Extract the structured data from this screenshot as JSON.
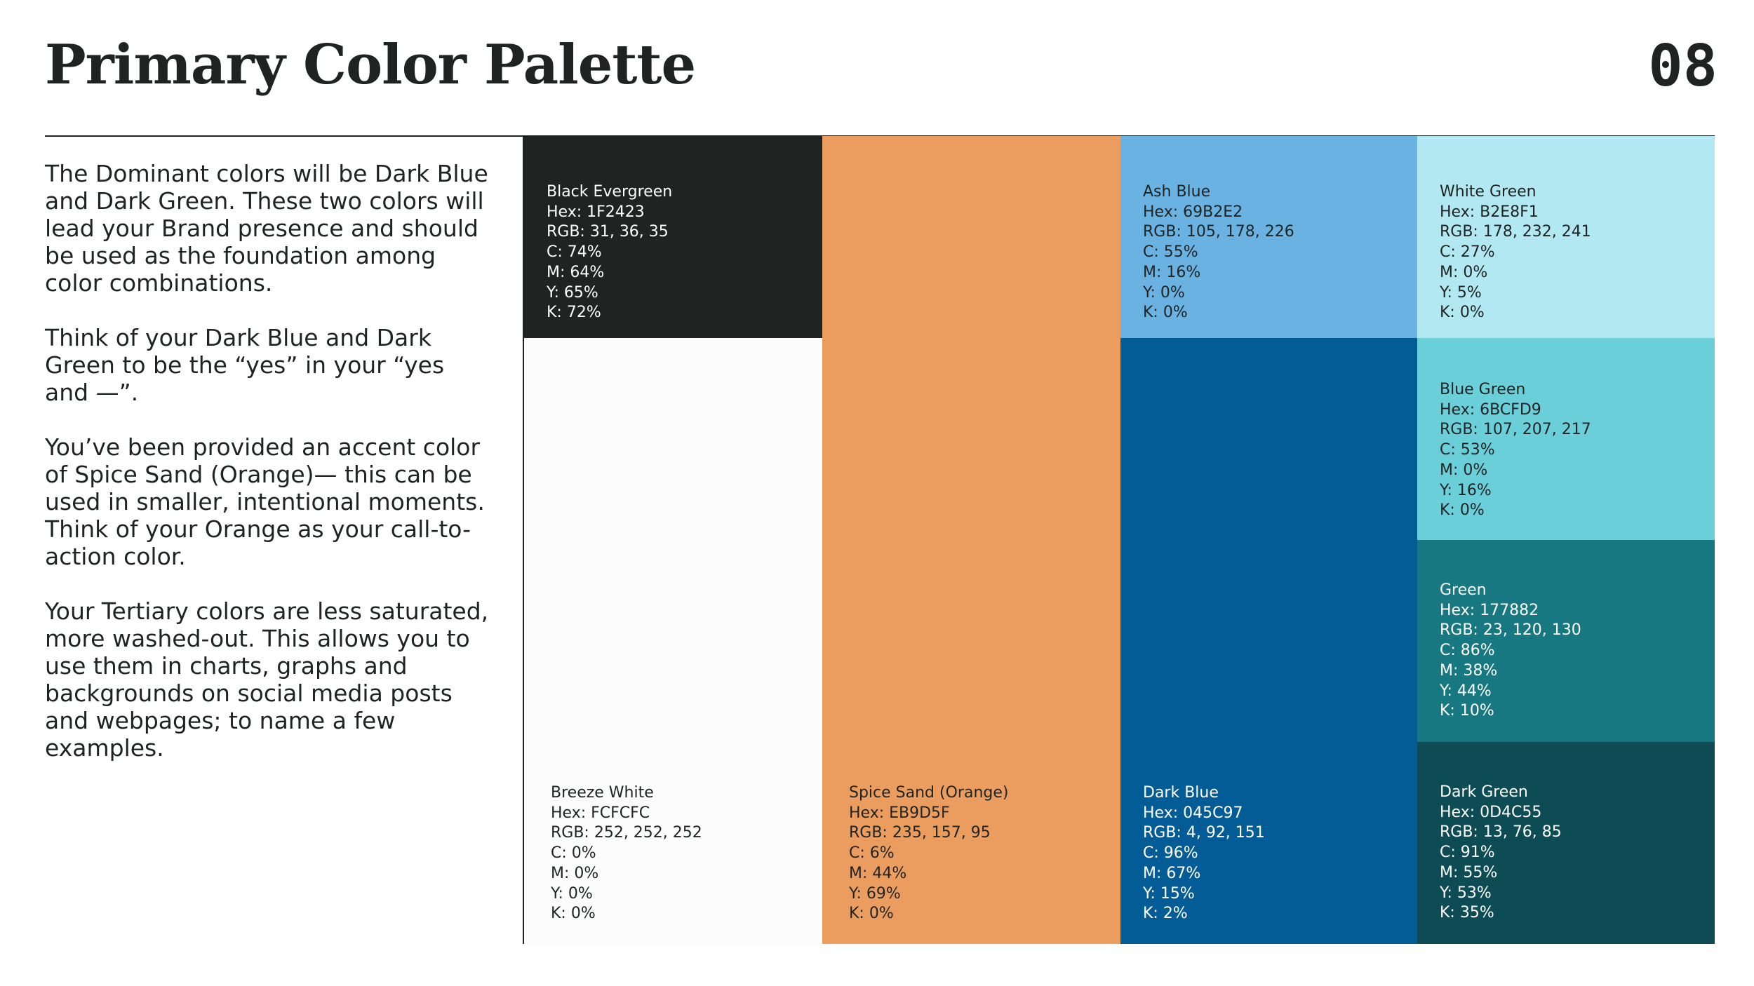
{
  "header": {
    "title": "Primary Color Palette",
    "page_number": "08"
  },
  "intro": {
    "paragraphs": [
      "The Dominant colors will be Dark Blue and Dark Green. These two colors will lead your Brand presence and should be used as the foundation among color combinations.",
      "Think of your Dark Blue and Dark Green to be the “yes” in your “yes and —”.",
      "You’ve been provided an accent color of Spice Sand (Orange)— this can be used in smaller, intentional moments. Think of your Orange as your call-to-action color.",
      "Your Tertiary colors are less saturated, more washed-out. This allows you to use them in charts, graphs and backgrounds on social media posts and webpages; to name a few examples."
    ]
  },
  "swatches": {
    "black_evergreen": {
      "name": "Black Evergreen",
      "hex": "Hex: 1F2423",
      "rgb": "RGB: 31, 36, 35",
      "c": "C: 74%",
      "m": "M: 64%",
      "y": "Y: 65%",
      "k": "K: 72%",
      "color": "#1F2423"
    },
    "breeze_white": {
      "name": "Breeze White",
      "hex": "Hex: FCFCFC",
      "rgb": "RGB: 252, 252, 252",
      "c": "C: 0%",
      "m": "M: 0%",
      "y": "Y: 0%",
      "k": "K: 0%",
      "color": "#FCFCFC"
    },
    "spice_sand": {
      "name": "Spice Sand (Orange)",
      "hex": "Hex: EB9D5F",
      "rgb": "RGB: 235, 157, 95",
      "c": "C: 6%",
      "m": "M: 44%",
      "y": "Y: 69%",
      "k": "K: 0%",
      "color": "#EB9D5F"
    },
    "ash_blue": {
      "name": "Ash Blue",
      "hex": "Hex: 69B2E2",
      "rgb": "RGB: 105, 178, 226",
      "c": "C: 55%",
      "m": "M: 16%",
      "y": "Y: 0%",
      "k": "K: 0%",
      "color": "#69B2E2"
    },
    "dark_blue": {
      "name": "Dark Blue",
      "hex": "Hex: 045C97",
      "rgb": "RGB: 4, 92, 151",
      "c": "C: 96%",
      "m": "M: 67%",
      "y": "Y: 15%",
      "k": "K: 2%",
      "color": "#045C97"
    },
    "white_green": {
      "name": "White Green",
      "hex": "Hex: B2E8F1",
      "rgb": "RGB: 178, 232, 241",
      "c": "C: 27%",
      "m": "M: 0%",
      "y": "Y: 5%",
      "k": "K: 0%",
      "color": "#B2E8F1"
    },
    "blue_green": {
      "name": "Blue Green",
      "hex": "Hex: 6BCFD9",
      "rgb": "RGB: 107, 207, 217",
      "c": "C: 53%",
      "m": "M: 0%",
      "y": "Y: 16%",
      "k": "K: 0%",
      "color": "#6BCFD9"
    },
    "green": {
      "name": "Green",
      "hex": "Hex: 177882",
      "rgb": "RGB: 23, 120, 130",
      "c": "C: 86%",
      "m": "M: 38%",
      "y": "Y: 44%",
      "k": "K: 10%",
      "color": "#177882"
    },
    "dark_green": {
      "name": "Dark Green",
      "hex": "Hex: 0D4C55",
      "rgb": "RGB: 13, 76, 85",
      "c": "C: 91%",
      "m": "M: 55%",
      "y": "Y: 53%",
      "k": "K: 35%",
      "color": "#0D4C55"
    }
  }
}
